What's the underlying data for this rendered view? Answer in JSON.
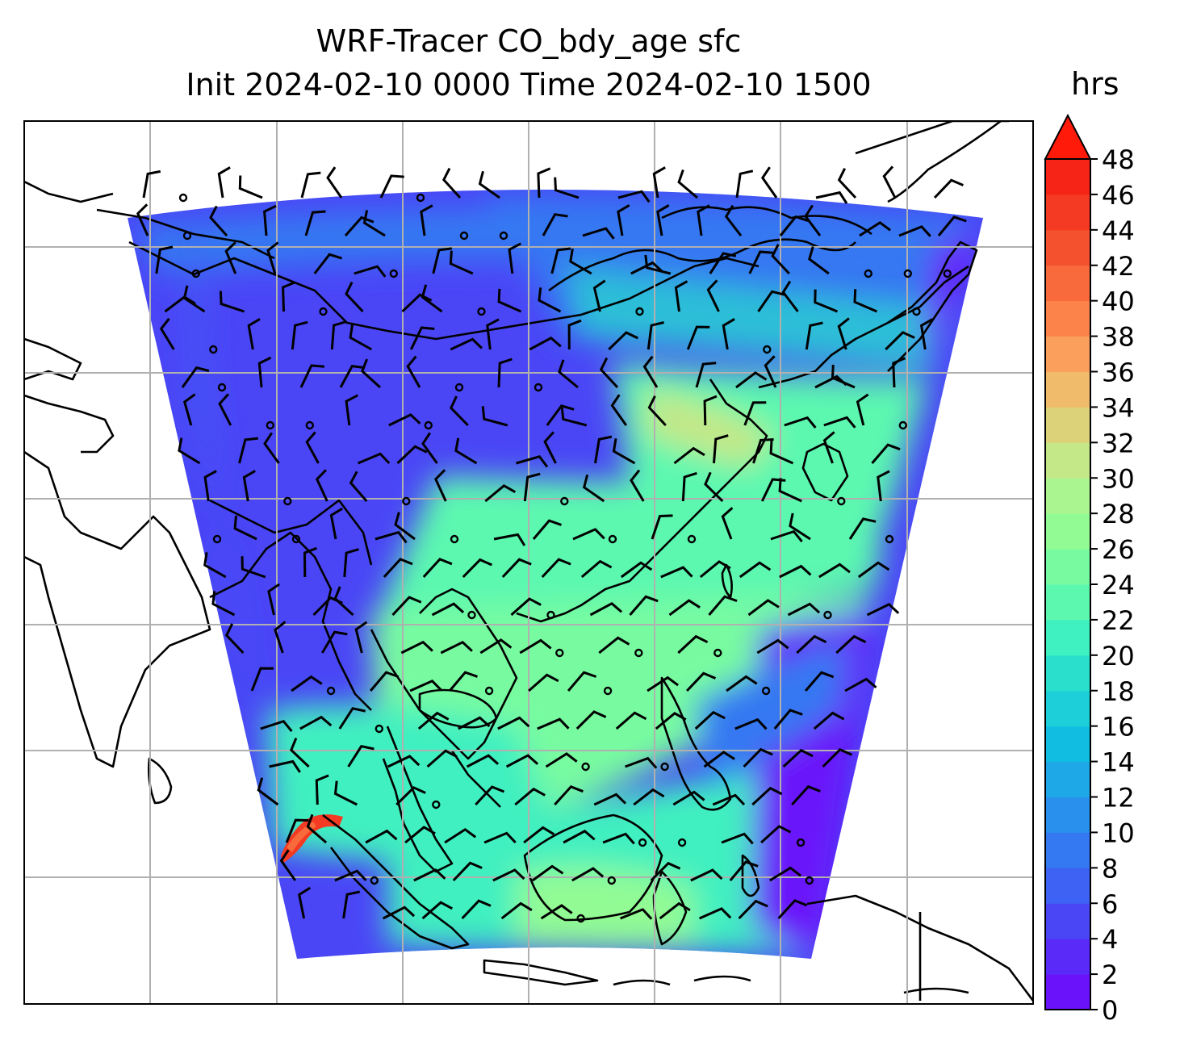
{
  "title": {
    "line1": "WRF-Tracer CO_bdy_age sfc",
    "line2": "Init 2024-02-10 0000 Time 2024-02-10 1500"
  },
  "colorbar": {
    "unit": "hrs",
    "ticks": [
      "0",
      "2",
      "4",
      "6",
      "8",
      "10",
      "12",
      "14",
      "16",
      "18",
      "20",
      "22",
      "24",
      "26",
      "28",
      "30",
      "32",
      "34",
      "36",
      "38",
      "40",
      "42",
      "44",
      "46",
      "48"
    ],
    "colors": [
      "#6a12fa",
      "#5a2af8",
      "#4a46f6",
      "#3e62f4",
      "#3478f2",
      "#2a90ee",
      "#1ea8e8",
      "#12bde2",
      "#1ccfd8",
      "#2ae0cc",
      "#3ff0c0",
      "#5cf8b0",
      "#78fba0",
      "#92fb94",
      "#aaf590",
      "#c4e888",
      "#dcd27a",
      "#f0bc6c",
      "#faa05c",
      "#fc844a",
      "#f86a3c",
      "#f4522e",
      "#f43a22",
      "#f62416"
    ],
    "extend_color": "#ff1a0a"
  },
  "map": {
    "field": "CO_bdy_age",
    "grid": "on",
    "colors": {
      "low": "#4a3cf4",
      "mid": "#3ff0c0",
      "high": "#a8f292",
      "peak": "#f43a22",
      "edge": "#6a12fa"
    }
  }
}
